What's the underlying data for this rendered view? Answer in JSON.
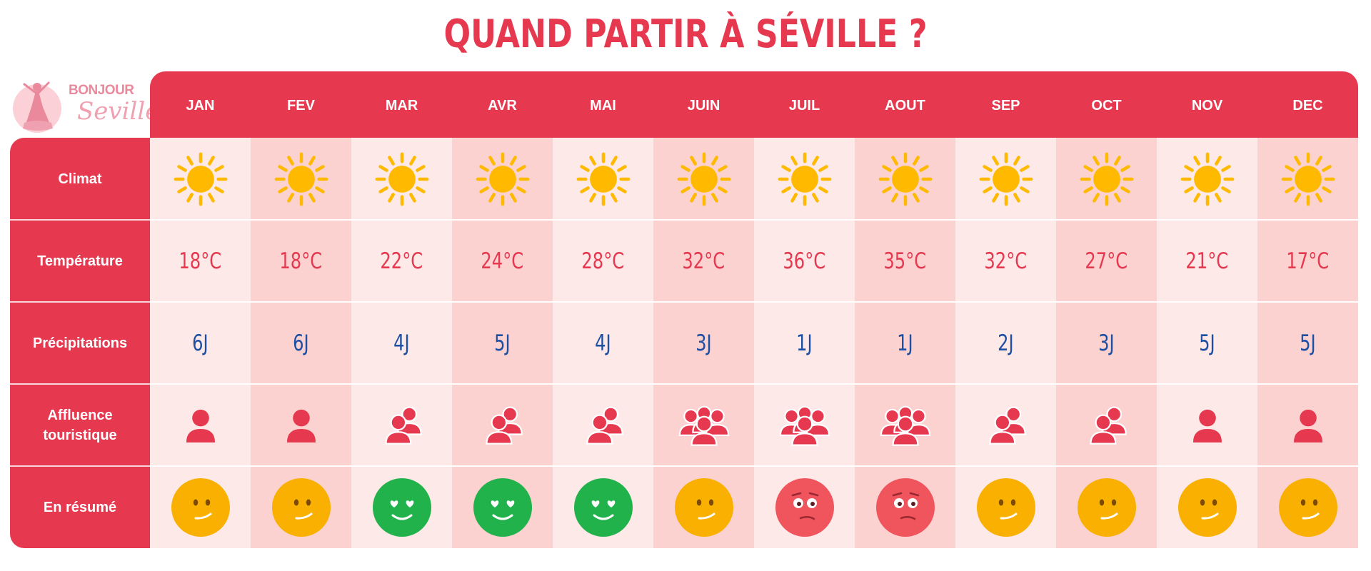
{
  "title": "QUAND PARTIR À SÉVILLE ?",
  "logo": {
    "top": "BONJOUR",
    "bottom": "Seville"
  },
  "months": [
    "JAN",
    "FEV",
    "MAR",
    "AVR",
    "MAI",
    "JUIN",
    "JUIL",
    "AOUT",
    "SEP",
    "OCT",
    "NOV",
    "DEC"
  ],
  "rows": {
    "climat": "Climat",
    "temperature": "Température",
    "precipitations": "Précipitations",
    "affluence": "Affluence\ntouristique",
    "resume": "En résumé"
  },
  "climate_icons": [
    "sun-icon",
    "sun-icon",
    "sun-icon",
    "sun-icon",
    "sun-icon",
    "sun-icon",
    "sun-icon",
    "sun-icon",
    "sun-icon",
    "sun-icon",
    "sun-icon",
    "sun-icon"
  ],
  "temperatures": [
    "18°C",
    "18°C",
    "22°C",
    "24°C",
    "28°C",
    "32°C",
    "36°C",
    "35°C",
    "32°C",
    "27°C",
    "21°C",
    "17°C"
  ],
  "precipitations": [
    "6J",
    "6J",
    "4J",
    "5J",
    "4J",
    "3J",
    "1J",
    "1J",
    "2J",
    "3J",
    "5J",
    "5J"
  ],
  "affluence_levels": [
    1,
    1,
    2,
    2,
    2,
    3,
    3,
    3,
    2,
    2,
    1,
    1
  ],
  "resume_moods": [
    "neutral",
    "neutral",
    "love",
    "love",
    "love",
    "neutral",
    "worried",
    "worried",
    "neutral",
    "neutral",
    "neutral",
    "neutral"
  ],
  "colors": {
    "primary": "#e63950",
    "cell_light": "#fde9e8",
    "cell_dark": "#fcd2d1",
    "rain_blue": "#1d4fa3",
    "sun_yellow": "#ffba00",
    "happy_green": "#22b24c",
    "worried_red": "#f0545c",
    "neutral_orange": "#f9b000"
  }
}
